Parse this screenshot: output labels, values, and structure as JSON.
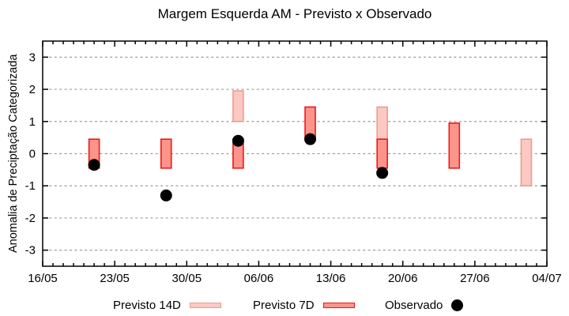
{
  "chart_data": {
    "type": "bar",
    "subtype": "forecast-range-bars-with-observed-scatter",
    "title": "Margem Esquerda AM - Previsto x Observado",
    "ylabel": "Anomalia de Preciptação Categorizada",
    "ylim": [
      -3.5,
      3.5
    ],
    "yticks": [
      3,
      2,
      1,
      0,
      -1,
      -2,
      -3
    ],
    "grid": "horizontal-dashed",
    "legend_position": "below-plot",
    "x_axis": {
      "tick_labels": [
        "16/05",
        "23/05",
        "30/05",
        "06/06",
        "13/06",
        "20/06",
        "27/06",
        "04/07"
      ],
      "tick_positions_days": [
        0,
        7,
        14,
        21,
        28,
        35,
        42,
        49
      ],
      "minor_tick_every_days": 1,
      "span_days": 49
    },
    "style": {
      "grid_color": "#9c9c9c",
      "axis_color": "#000000",
      "background": "#ffffff"
    },
    "series": [
      {
        "name": "Previsto 14D",
        "kind": "range-bar",
        "fill": "#fbc9c2",
        "stroke": "#f09a90",
        "bars": [
          {
            "date": "04/06",
            "day": 19,
            "from": 1.0,
            "to": 1.95
          },
          {
            "date": "18/06",
            "day": 33,
            "from": 0.45,
            "to": 1.45
          },
          {
            "date": "02/07",
            "day": 47,
            "from": -1.0,
            "to": 0.45
          }
        ]
      },
      {
        "name": "Previsto 7D",
        "kind": "range-bar",
        "fill": "#fb948b",
        "stroke": "#f01812",
        "bars": [
          {
            "date": "21/05",
            "day": 5,
            "from": -0.45,
            "to": 0.45
          },
          {
            "date": "28/05",
            "day": 12,
            "from": -0.45,
            "to": 0.45
          },
          {
            "date": "04/06",
            "day": 19,
            "from": -0.45,
            "to": 0.45
          },
          {
            "date": "11/06",
            "day": 26,
            "from": 0.45,
            "to": 1.45
          },
          {
            "date": "18/06",
            "day": 33,
            "from": -0.45,
            "to": 0.45
          },
          {
            "date": "25/06",
            "day": 40,
            "from": -0.45,
            "to": 0.95
          }
        ]
      },
      {
        "name": "Observado",
        "kind": "scatter",
        "fill": "#000000",
        "points": [
          {
            "date": "21/05",
            "day": 5,
            "value": -0.35
          },
          {
            "date": "28/05",
            "day": 12,
            "value": -1.3
          },
          {
            "date": "04/06",
            "day": 19,
            "value": 0.4
          },
          {
            "date": "11/06",
            "day": 26,
            "value": 0.45
          },
          {
            "date": "18/06",
            "day": 33,
            "value": -0.6
          }
        ]
      }
    ]
  }
}
